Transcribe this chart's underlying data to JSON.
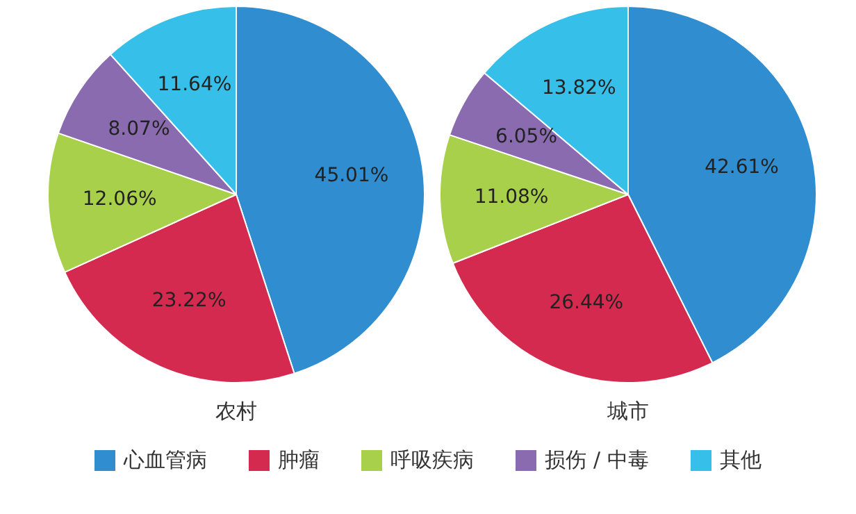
{
  "chart_data": [
    {
      "type": "pie",
      "title": "农村",
      "categories": [
        "心血管病",
        "肿瘤",
        "呼吸疾病",
        "损伤 / 中毒",
        "其他"
      ],
      "values": [
        45.01,
        23.22,
        12.06,
        8.07,
        11.64
      ],
      "value_labels": [
        "45.01%",
        "23.22%",
        "12.06%",
        "8.07%",
        "11.64%"
      ],
      "colors": [
        "#2f8dd0",
        "#d52a4f",
        "#a9d04b",
        "#8a6bb0",
        "#36bfe9"
      ],
      "legend": "bottom"
    },
    {
      "type": "pie",
      "title": "城市",
      "categories": [
        null,
        null,
        null,
        null,
        null
      ],
      "values": [
        42.61,
        26.44,
        11.08,
        6.05,
        13.82
      ],
      "value_labels": [
        "42.61%",
        "26.44%",
        "11.08%",
        "6.05%",
        "13.82%"
      ],
      "colors": [
        "#2f8dd0",
        "#d52a4f",
        "#a9d04b",
        "#8a6bb0",
        "#36bfe9"
      ]
    }
  ]
}
